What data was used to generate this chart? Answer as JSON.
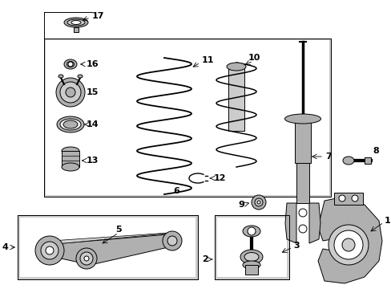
{
  "white": "#ffffff",
  "line_color": "#000000",
  "gray_bg": "#cccccc",
  "gray_part": "#b0b0b0",
  "fig_width": 4.89,
  "fig_height": 3.6,
  "dpi": 100
}
